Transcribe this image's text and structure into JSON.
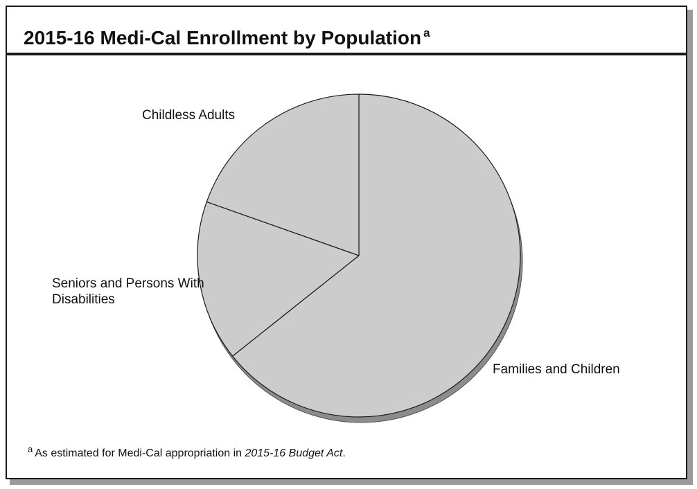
{
  "chart_data": {
    "type": "pie",
    "title": "2015-16 Medi-Cal Enrollment by Population",
    "title_footnote_marker": "a",
    "slices": [
      {
        "label": "Families and Children",
        "value": 64.3
      },
      {
        "label": "Seniors and Persons With Disabilities",
        "value": 16.1
      },
      {
        "label": "Childless Adults",
        "value": 19.6
      }
    ],
    "slice_color": "#cccccc",
    "outline_color": "#1a1a1a",
    "shadow_color": "#8c8c8c"
  },
  "footnote": {
    "marker": "a",
    "text_prefix": "As estimated for Medi-Cal appropriation in ",
    "text_italic": "2015-16 Budget Act",
    "text_suffix": "."
  }
}
